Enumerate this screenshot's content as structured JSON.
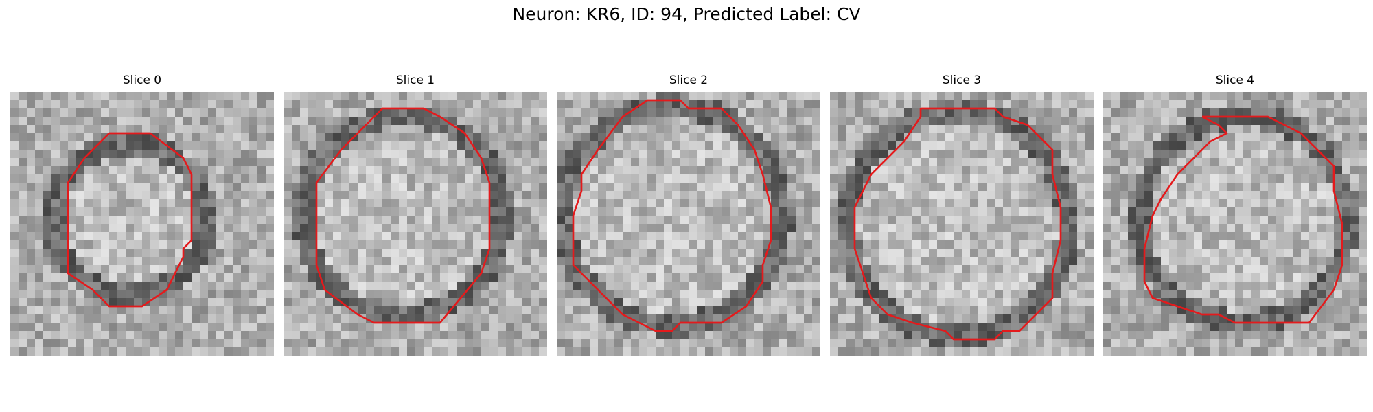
{
  "figure": {
    "title": "Neuron: KR6, ID: 94, Predicted Label: CV",
    "contour_color": "#e41a1c"
  },
  "panels": [
    {
      "title": "Slice 0",
      "seed": 11,
      "contour": [
        [
          12,
          5
        ],
        [
          17,
          5
        ],
        [
          21,
          8
        ],
        [
          22,
          10
        ],
        [
          22,
          14
        ],
        [
          22,
          18
        ],
        [
          21,
          19
        ],
        [
          21,
          20
        ],
        [
          19,
          24
        ],
        [
          16,
          26
        ],
        [
          12,
          26
        ],
        [
          10,
          24
        ],
        [
          7,
          22
        ],
        [
          7,
          18
        ],
        [
          7,
          11
        ],
        [
          9,
          8
        ],
        [
          12,
          5
        ]
      ]
    },
    {
      "title": "Slice 1",
      "seed": 23,
      "contour": [
        [
          12,
          2
        ],
        [
          17,
          2
        ],
        [
          19,
          3
        ],
        [
          22,
          5
        ],
        [
          24,
          8
        ],
        [
          25,
          11
        ],
        [
          25,
          19
        ],
        [
          24,
          22
        ],
        [
          19,
          28
        ],
        [
          11,
          28
        ],
        [
          9,
          27
        ],
        [
          5,
          24
        ],
        [
          4,
          21
        ],
        [
          4,
          11
        ],
        [
          7,
          7
        ],
        [
          10,
          4
        ],
        [
          12,
          2
        ]
      ]
    },
    {
      "title": "Slice 2",
      "seed": 37,
      "contour": [
        [
          11,
          1
        ],
        [
          15,
          1
        ],
        [
          16,
          2
        ],
        [
          20,
          2
        ],
        [
          22,
          4
        ],
        [
          24,
          7
        ],
        [
          25,
          10
        ],
        [
          26,
          14
        ],
        [
          26,
          18
        ],
        [
          25,
          21
        ],
        [
          25,
          23
        ],
        [
          23,
          26
        ],
        [
          20,
          28
        ],
        [
          15,
          28
        ],
        [
          14,
          29
        ],
        [
          12,
          29
        ],
        [
          10,
          28
        ],
        [
          8,
          27
        ],
        [
          5,
          24
        ],
        [
          2,
          21
        ],
        [
          2,
          15
        ],
        [
          3,
          12
        ],
        [
          3,
          10
        ],
        [
          5,
          7
        ],
        [
          8,
          3
        ],
        [
          11,
          1
        ]
      ]
    },
    {
      "title": "Slice 3",
      "seed": 51,
      "contour": [
        [
          11,
          2
        ],
        [
          20,
          2
        ],
        [
          21,
          3
        ],
        [
          24,
          4
        ],
        [
          27,
          7
        ],
        [
          27,
          10
        ],
        [
          28,
          14
        ],
        [
          28,
          18
        ],
        [
          27,
          22
        ],
        [
          27,
          25
        ],
        [
          23,
          29
        ],
        [
          21,
          29
        ],
        [
          20,
          30
        ],
        [
          15,
          30
        ],
        [
          14,
          29
        ],
        [
          10,
          28
        ],
        [
          7,
          27
        ],
        [
          5,
          25
        ],
        [
          4,
          22
        ],
        [
          3,
          19
        ],
        [
          3,
          14
        ],
        [
          5,
          10
        ],
        [
          9,
          6
        ],
        [
          11,
          3
        ],
        [
          11,
          2
        ]
      ]
    },
    {
      "title": "Slice 4",
      "seed": 67,
      "contour": [
        [
          12,
          3
        ],
        [
          20,
          3
        ],
        [
          22,
          4
        ],
        [
          24,
          5
        ],
        [
          26,
          7
        ],
        [
          28,
          9
        ],
        [
          28,
          12
        ],
        [
          29,
          16
        ],
        [
          29,
          21
        ],
        [
          28,
          24
        ],
        [
          25,
          28
        ],
        [
          16,
          28
        ],
        [
          14,
          27
        ],
        [
          12,
          27
        ],
        [
          9,
          26
        ],
        [
          6,
          25
        ],
        [
          5,
          23
        ],
        [
          5,
          19
        ],
        [
          6,
          15
        ],
        [
          7,
          13
        ],
        [
          9,
          10
        ],
        [
          11,
          8
        ],
        [
          13,
          6
        ],
        [
          15,
          5
        ],
        [
          14,
          4
        ],
        [
          12,
          3
        ]
      ]
    }
  ]
}
